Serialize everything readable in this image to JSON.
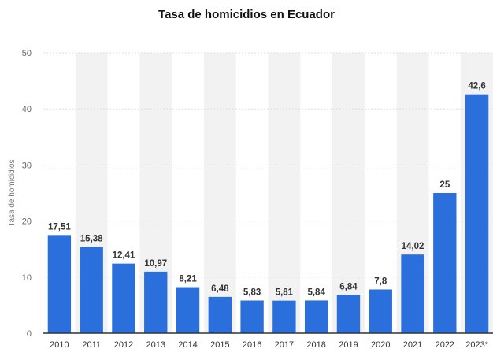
{
  "chart_data": {
    "type": "bar",
    "title": "Tasa de homicidios en Ecuador",
    "xlabel": "",
    "ylabel": "Tasa de homicidios",
    "categories": [
      "2010",
      "2011",
      "2012",
      "2013",
      "2014",
      "2015",
      "2016",
      "2017",
      "2018",
      "2019",
      "2020",
      "2021",
      "2022",
      "2023*"
    ],
    "values": [
      17.51,
      15.38,
      12.41,
      10.97,
      8.21,
      6.48,
      5.83,
      5.81,
      5.84,
      6.84,
      7.8,
      14.02,
      25,
      42.6
    ],
    "value_labels": [
      "17,51",
      "15,38",
      "12,41",
      "10,97",
      "8,21",
      "6,48",
      "5,83",
      "5,81",
      "5,84",
      "6,84",
      "7,8",
      "14,02",
      "25",
      "42,6"
    ],
    "y_ticks": [
      "0",
      "10",
      "20",
      "30",
      "40",
      "50"
    ],
    "ylim": [
      0,
      50
    ],
    "grid": true,
    "legend": "none",
    "colors": {
      "bar": "#2a6fdb",
      "band": "#f2f2f2",
      "grid": "#dddddd",
      "axis": "#333333"
    }
  }
}
